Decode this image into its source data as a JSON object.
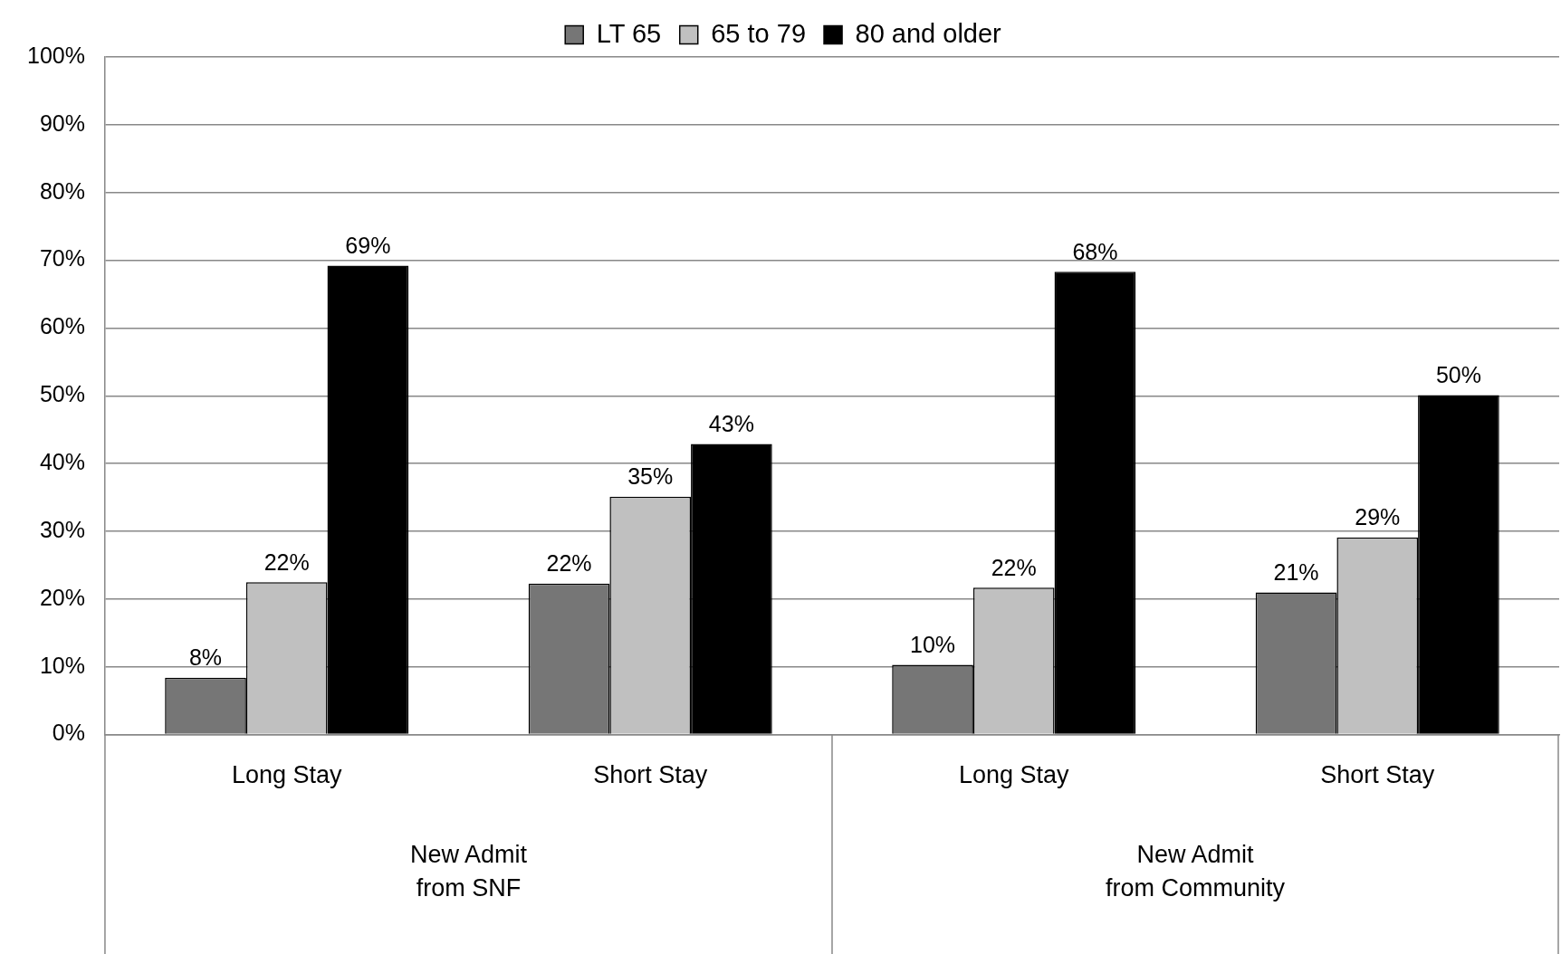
{
  "chart_data": {
    "type": "bar",
    "categories": [
      "Long Stay",
      "Short Stay",
      "Long Stay",
      "Short Stay"
    ],
    "series": [
      {
        "name": "LT 65",
        "color": "#767676",
        "values": [
          8.4,
          22.3,
          10.3,
          21
        ],
        "value_labels": [
          "8%",
          "22%",
          "10%",
          "21%"
        ]
      },
      {
        "name": "65 to 79",
        "color": "#c0c0c0",
        "values": [
          22.5,
          35.1,
          21.7,
          29.1
        ],
        "value_labels": [
          "22%",
          "35%",
          "22%",
          "29%"
        ]
      },
      {
        "name": "80 and older",
        "color": "#000000",
        "values": [
          69.2,
          42.9,
          68.3,
          50.1
        ],
        "value_labels": [
          "69%",
          "43%",
          "68%",
          "50%"
        ]
      }
    ],
    "ylim": [
      0,
      100
    ],
    "yticks": [
      {
        "value": 0,
        "label": "0%"
      },
      {
        "value": 10,
        "label": "10%"
      },
      {
        "value": 20,
        "label": "20%"
      },
      {
        "value": 30,
        "label": "30%"
      },
      {
        "value": 40,
        "label": "40%"
      },
      {
        "value": 50,
        "label": "50%"
      },
      {
        "value": 60,
        "label": "60%"
      },
      {
        "value": 70,
        "label": "70%"
      },
      {
        "value": 80,
        "label": "80%"
      },
      {
        "value": 90,
        "label": "90%"
      },
      {
        "value": 100,
        "label": "100%"
      }
    ],
    "grid": "y",
    "legend": "top",
    "annotations": [
      "New Admit\nfrom SNF",
      "New Admit\nfrom Community"
    ]
  }
}
